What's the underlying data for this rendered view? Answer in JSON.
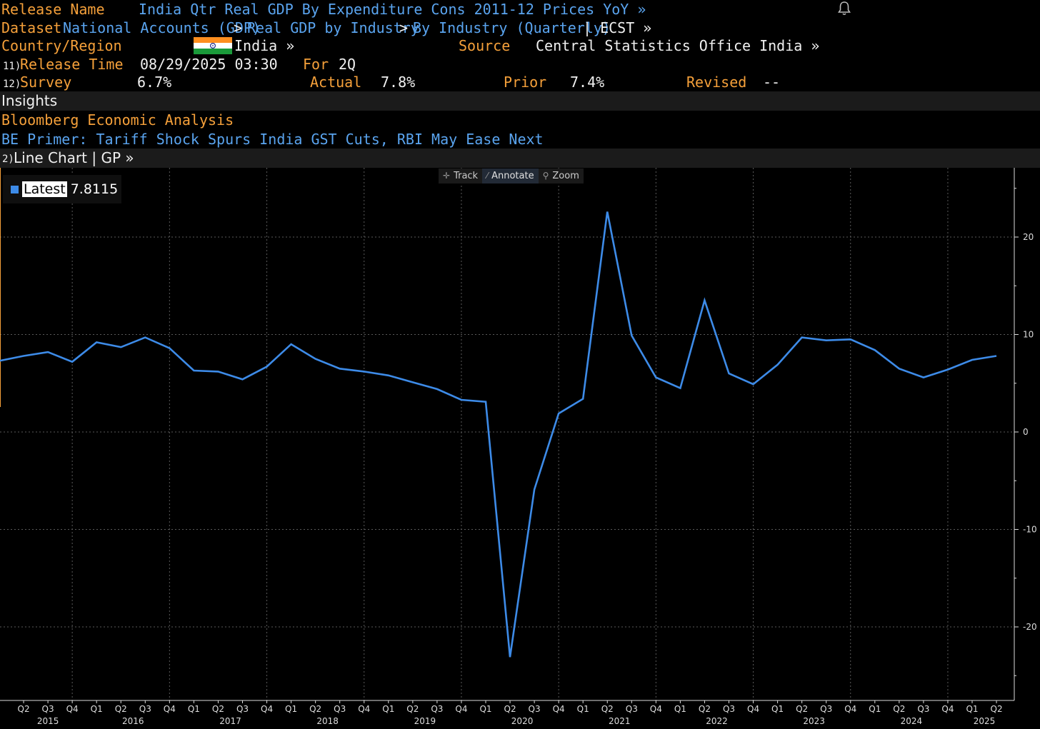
{
  "header": {
    "release_name_label": "Release Name",
    "release_name_value": "India Qtr Real GDP By Expenditure Cons 2011-12 Prices YoY »",
    "dataset_label": "Dataset",
    "dataset_path_1": "National Accounts (GDP)",
    "dataset_sep_1": ">",
    "dataset_path_2": "Real GDP by Industry",
    "dataset_sep_2": ">",
    "dataset_path_3": "By Industry (Quarterly)",
    "dataset_ticker": "| ECST »",
    "country_label": "Country/Region",
    "country_value": "India »",
    "source_label": "Source",
    "source_value": "Central Statistics Office India »",
    "release_time_num": "11)",
    "release_time_label": "Release Time",
    "release_time_value": "08/29/2025 03:30",
    "for_label": "For",
    "for_value": "2Q",
    "survey_num": "12)",
    "survey_label": "Survey",
    "survey_value": "6.7%",
    "actual_label": "Actual",
    "actual_value": "7.8%",
    "prior_label": "Prior",
    "prior_value": "7.4%",
    "revised_label": "Revised",
    "revised_value": "--"
  },
  "insights": {
    "title": "Insights",
    "analysis_label": "Bloomberg Economic Analysis",
    "article_link": "BE Primer: Tariff Shock Spurs India GST Cuts, RBI May Ease Next"
  },
  "chart_section": {
    "num": "2)",
    "title": "Line Chart | GP »"
  },
  "toolbar": {
    "track": "Track",
    "annotate": "Annotate",
    "zoom": "Zoom"
  },
  "legend": {
    "label": "Latest",
    "value": "7.8115"
  },
  "colors": {
    "orange": "#f5a03a",
    "blue_text": "#5aa4ef",
    "series_line": "#3d8be8",
    "background": "#000000"
  },
  "chart_data": {
    "type": "line",
    "ylim": [
      -27,
      26
    ],
    "yticks": [
      20,
      10,
      0,
      -10,
      -20
    ],
    "ytick_labels": [
      "20",
      "10",
      "0",
      "-10",
      "-20"
    ],
    "grid": true,
    "x": [
      "2015 Q1",
      "2015 Q2",
      "2015 Q3",
      "2015 Q4",
      "2016 Q1",
      "2016 Q2",
      "2016 Q3",
      "2016 Q4",
      "2017 Q1",
      "2017 Q2",
      "2017 Q3",
      "2017 Q4",
      "2018 Q1",
      "2018 Q2",
      "2018 Q3",
      "2018 Q4",
      "2019 Q1",
      "2019 Q2",
      "2019 Q3",
      "2019 Q4",
      "2020 Q1",
      "2020 Q2",
      "2020 Q3",
      "2020 Q4",
      "2021 Q1",
      "2021 Q2",
      "2021 Q3",
      "2021 Q4",
      "2022 Q1",
      "2022 Q2",
      "2022 Q3",
      "2022 Q4",
      "2023 Q1",
      "2023 Q2",
      "2023 Q3",
      "2023 Q4",
      "2024 Q1",
      "2024 Q2",
      "2024 Q3",
      "2024 Q4",
      "2025 Q1",
      "2025 Q2"
    ],
    "series": [
      {
        "name": "Latest",
        "values": [
          7.3,
          7.8,
          8.2,
          7.2,
          9.2,
          8.7,
          9.7,
          8.6,
          6.3,
          6.2,
          5.4,
          6.7,
          9.0,
          7.5,
          6.5,
          6.2,
          5.8,
          5.1,
          4.4,
          3.3,
          3.1,
          -23.1,
          -5.9,
          1.9,
          3.4,
          22.6,
          9.9,
          5.6,
          4.5,
          13.5,
          6.0,
          4.9,
          6.9,
          9.7,
          9.4,
          9.5,
          8.4,
          6.5,
          5.6,
          6.4,
          7.4,
          7.8
        ]
      }
    ],
    "xtick_labels": [
      "Q2",
      "Q3",
      "Q4",
      "Q1",
      "Q2",
      "Q3",
      "Q4",
      "Q1",
      "Q2",
      "Q3",
      "Q4",
      "Q1",
      "Q2",
      "Q3",
      "Q4",
      "Q1",
      "Q2",
      "Q3",
      "Q4",
      "Q1",
      "Q2",
      "Q3",
      "Q4",
      "Q1",
      "Q2",
      "Q3",
      "Q4",
      "Q1",
      "Q2",
      "Q3",
      "Q4",
      "Q1",
      "Q2",
      "Q3",
      "Q4",
      "Q1",
      "Q2",
      "Q3",
      "Q4",
      "Q1",
      "Q2"
    ],
    "year_labels": [
      "2015",
      "2016",
      "2017",
      "2018",
      "2019",
      "2020",
      "2021",
      "2022",
      "2023",
      "2024",
      "2025"
    ]
  }
}
